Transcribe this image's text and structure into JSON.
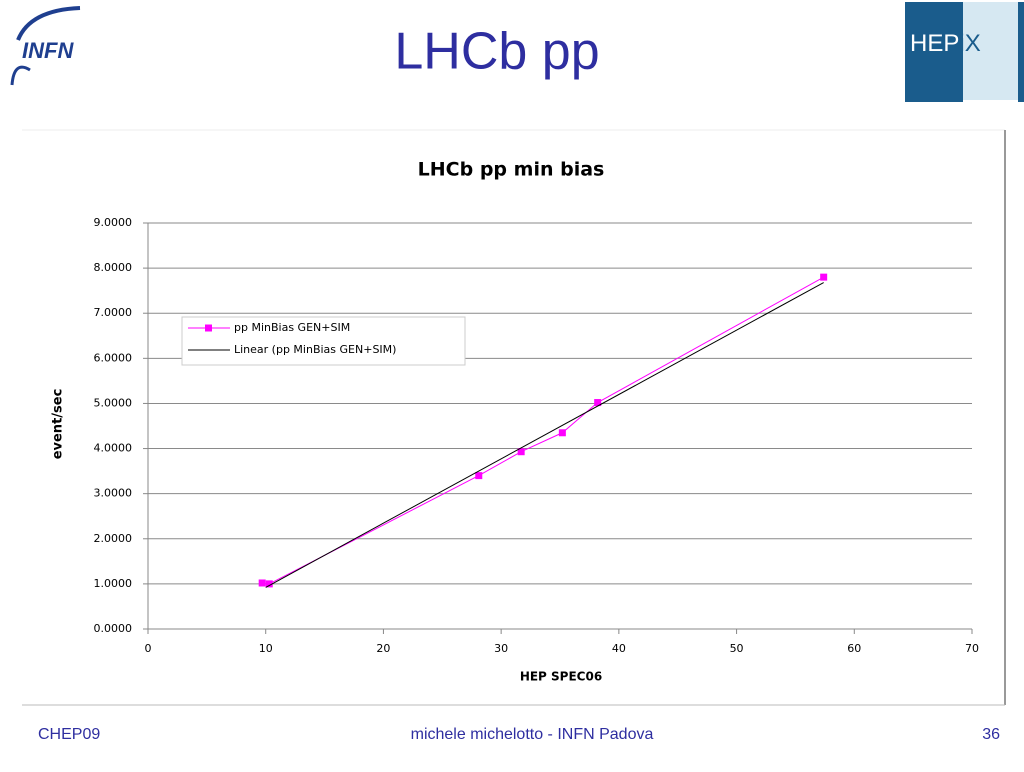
{
  "header": {
    "title": "LHCb pp",
    "logo_left": "INFN",
    "logo_right": [
      "HEP",
      "iX"
    ]
  },
  "footer": {
    "left": "CHEP09",
    "center": "michele michelotto - INFN Padova",
    "page": "36"
  },
  "chart_data": {
    "type": "line",
    "title": "LHCb pp  min bias",
    "x_label": "HEP SPEC06",
    "y_label": "event/sec",
    "series": [
      {
        "name": "pp MinBias GEN+SIM",
        "color": "#ff00ff",
        "marker": "square",
        "x": [
          9.7,
          10.3,
          28.1,
          31.7,
          35.2,
          38.2,
          57.4
        ],
        "values": [
          1.02,
          1.0,
          3.4,
          3.93,
          4.35,
          5.02,
          7.8
        ]
      },
      {
        "name": "Linear (pp MinBias GEN+SIM)",
        "color": "#000000",
        "marker": "none",
        "x": [
          10,
          57.4
        ],
        "values": [
          0.92,
          7.68
        ]
      }
    ],
    "xlim": [
      0,
      70
    ],
    "xticks": [
      0,
      10,
      20,
      30,
      40,
      50,
      60,
      70
    ],
    "ylim": [
      0,
      9
    ],
    "yticks": [
      {
        "value": 0,
        "label": "0.0000"
      },
      {
        "value": 1,
        "label": "1.0000"
      },
      {
        "value": 2,
        "label": "2.0000"
      },
      {
        "value": 3,
        "label": "3.0000"
      },
      {
        "value": 4,
        "label": "4.0000"
      },
      {
        "value": 5,
        "label": "5.0000"
      },
      {
        "value": 6,
        "label": "6.0000"
      },
      {
        "value": 7,
        "label": "7.0000"
      },
      {
        "value": 8,
        "label": "8.0000"
      },
      {
        "value": 9,
        "label": "9.0000"
      }
    ],
    "grid": true,
    "legend": "upper left"
  }
}
